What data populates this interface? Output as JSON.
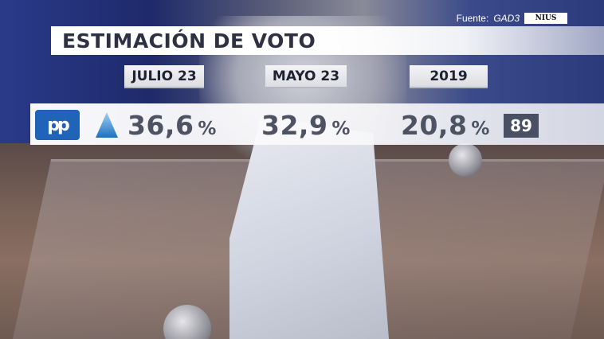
{
  "source": {
    "label": "Fuente:",
    "name": "GAD3",
    "logo_text": "NIUS"
  },
  "title": "ESTIMACIÓN DE VOTO",
  "columns": [
    {
      "header": "JULIO 23",
      "value": "36,6",
      "unit": "%"
    },
    {
      "header": "MAYO 23",
      "value": "32,9",
      "unit": "%"
    },
    {
      "header": "2019",
      "value": "20,8",
      "unit": "%"
    }
  ],
  "party": {
    "logo_text": "pp",
    "logo_color": "#1f64b8",
    "trend_icon": "up-triangle-icon",
    "seats_2019": "89"
  },
  "colors": {
    "value_text": "#4e5363",
    "badge_bg": "#4a5064",
    "trend": "#2f8fd8"
  }
}
